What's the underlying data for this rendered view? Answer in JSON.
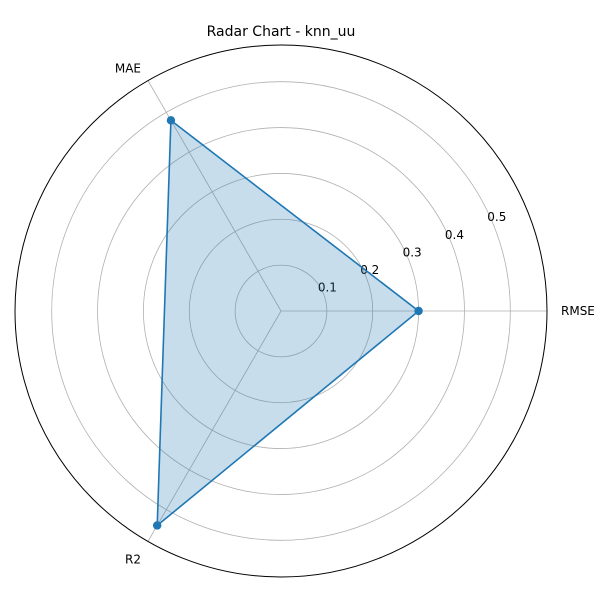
{
  "chart_data": {
    "type": "radar",
    "title": "Radar Chart - knn_uu",
    "categories": [
      "RMSE",
      "MAE",
      "R2"
    ],
    "series": [
      {
        "values": [
          0.3,
          0.48,
          0.54
        ]
      }
    ],
    "r_ticks": [
      "0.1",
      "0.2",
      "0.3",
      "0.4",
      "0.5"
    ],
    "r_tick_values": [
      0.1,
      0.2,
      0.3,
      0.4,
      0.5
    ],
    "rlim": [
      0,
      0.58
    ],
    "grid": true,
    "colors": {
      "line": "#1f77b4",
      "fill": "#1f77b4",
      "grid": "#b0b0b0",
      "spine": "#000000"
    }
  }
}
